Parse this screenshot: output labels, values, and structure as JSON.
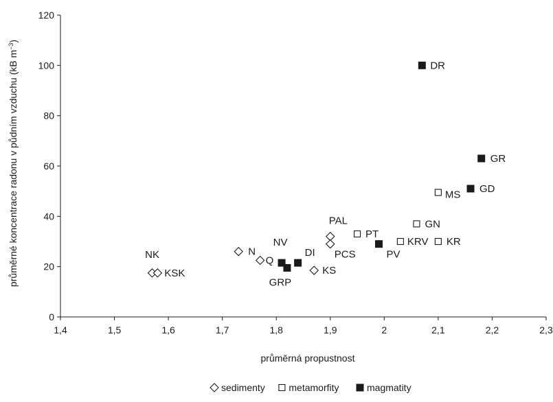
{
  "chart_data": {
    "type": "scatter",
    "title": "",
    "xlabel": "průměrná propustnost",
    "ylabel": "průměrné koncentrace radonu v půdním vzduchu (kB m",
    "ylabel_sup": "−3",
    "ylabel_end": ")",
    "xlim": [
      1.4,
      2.3
    ],
    "ylim": [
      0,
      120
    ],
    "x_ticks": [
      "1,4",
      "1,5",
      "1,6",
      "1,7",
      "1,8",
      "1,9",
      "2",
      "2,1",
      "2,2",
      "2,3"
    ],
    "x_tick_values": [
      1.4,
      1.5,
      1.6,
      1.7,
      1.8,
      1.9,
      2.0,
      2.1,
      2.2,
      2.3
    ],
    "y_ticks": [
      "0",
      "20",
      "40",
      "60",
      "80",
      "100",
      "120"
    ],
    "y_tick_values": [
      0,
      20,
      40,
      60,
      80,
      100,
      120
    ],
    "grid": false,
    "legend_position": "bottom-center",
    "series": [
      {
        "name": "sedimenty",
        "marker": "diamond-open",
        "color": "#1a1a1a",
        "points": [
          {
            "x": 1.57,
            "y": 17.5,
            "label": "NK"
          },
          {
            "x": 1.58,
            "y": 17.5,
            "label": "KSK"
          },
          {
            "x": 1.73,
            "y": 26,
            "label": "N"
          },
          {
            "x": 1.77,
            "y": 22.5,
            "label": "Q"
          },
          {
            "x": 1.87,
            "y": 18.5,
            "label": "KS"
          },
          {
            "x": 1.9,
            "y": 32,
            "label": "PAL"
          },
          {
            "x": 1.9,
            "y": 29,
            "label": "PCS"
          }
        ]
      },
      {
        "name": "metamorfity",
        "marker": "square-open",
        "color": "#1a1a1a",
        "points": [
          {
            "x": 1.95,
            "y": 33,
            "label": "PT"
          },
          {
            "x": 2.03,
            "y": 30,
            "label": "KRV"
          },
          {
            "x": 2.06,
            "y": 37,
            "label": "GN"
          },
          {
            "x": 2.1,
            "y": 30,
            "label": "KR"
          },
          {
            "x": 2.1,
            "y": 49.5,
            "label": "MS"
          }
        ]
      },
      {
        "name": "magmatity",
        "marker": "square-filled",
        "color": "#1a1a1a",
        "points": [
          {
            "x": 1.81,
            "y": 21.5,
            "label": "NV"
          },
          {
            "x": 1.82,
            "y": 19.5,
            "label": "GRP"
          },
          {
            "x": 1.84,
            "y": 21.5,
            "label": "DI"
          },
          {
            "x": 1.99,
            "y": 29,
            "label": "PV"
          },
          {
            "x": 2.07,
            "y": 100,
            "label": "DR"
          },
          {
            "x": 2.16,
            "y": 51,
            "label": "GD"
          },
          {
            "x": 2.18,
            "y": 63,
            "label": "GR"
          }
        ]
      }
    ]
  }
}
